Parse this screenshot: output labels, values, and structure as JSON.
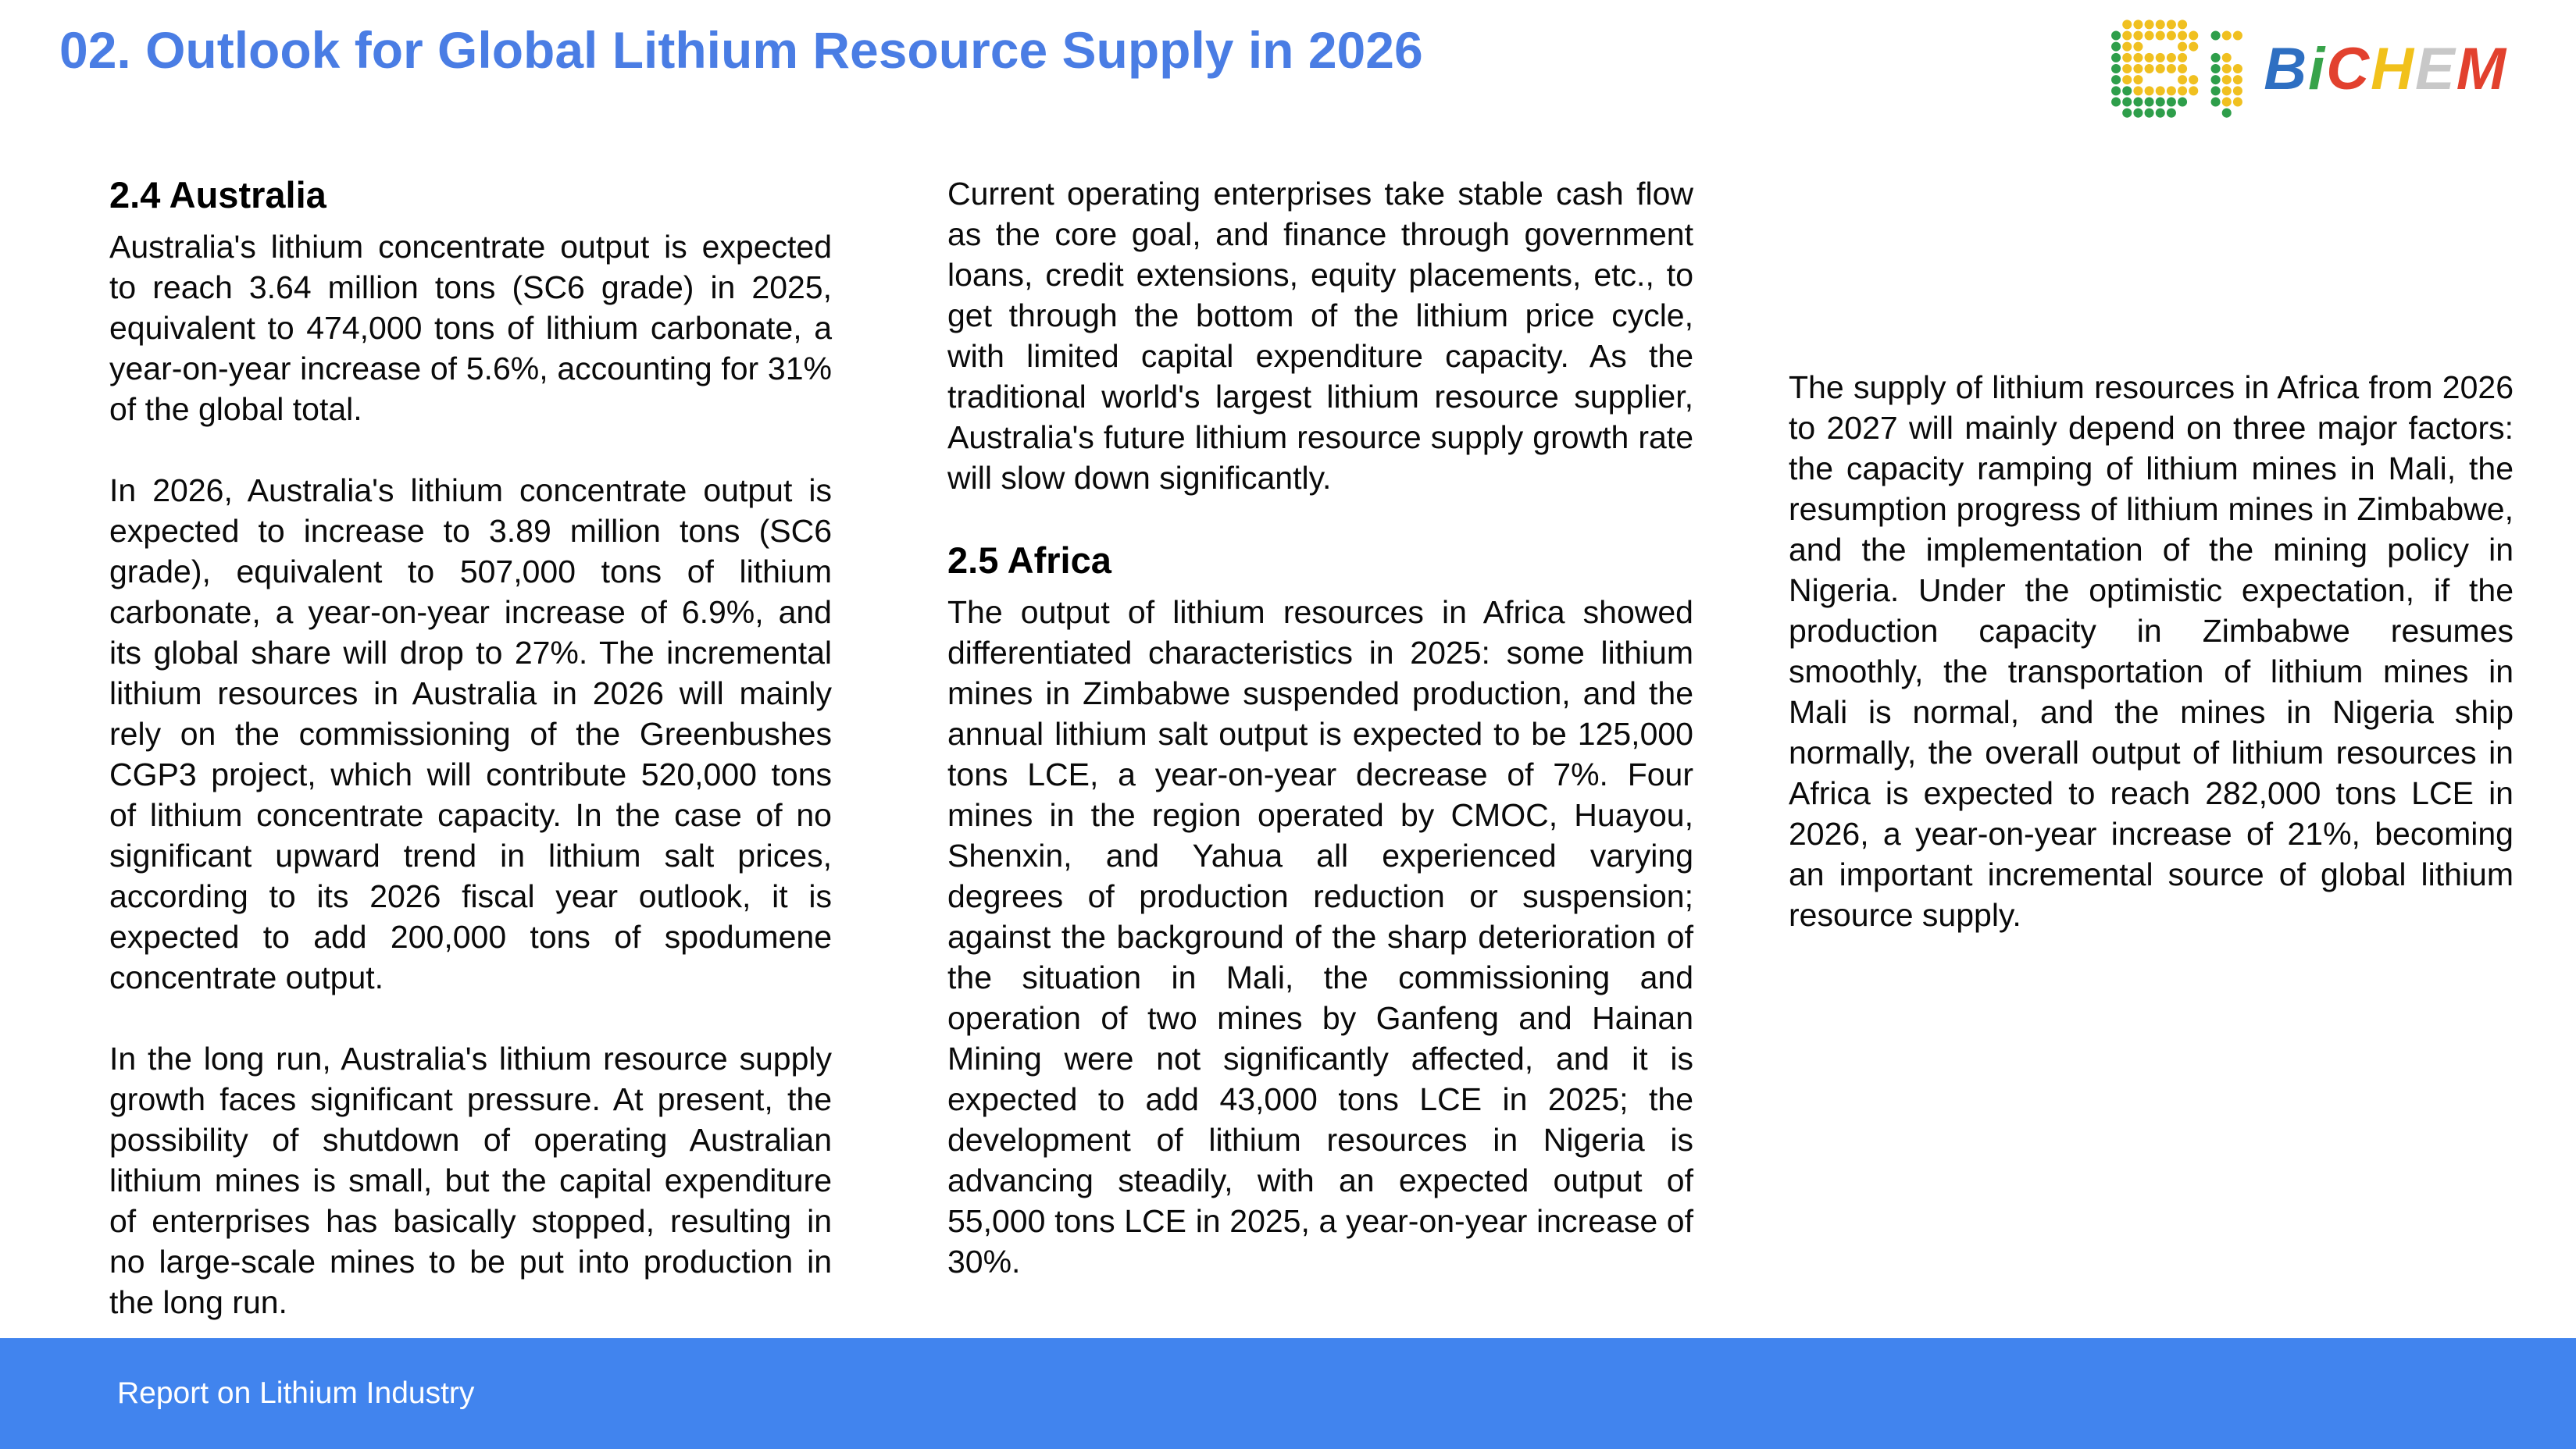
{
  "header": {
    "title": "02. Outlook for Global Lithium Resource Supply in 2026",
    "title_color": "#4a7de4"
  },
  "logo": {
    "name": "BiCHEM",
    "dot_colors": {
      "green": "#2e9e4a",
      "yellow": "#f0c020"
    },
    "letters": [
      {
        "char": "B",
        "color": "#2e6fc2"
      },
      {
        "char": "i",
        "color": "#38a34a"
      },
      {
        "char": "C",
        "color": "#e2412e"
      },
      {
        "char": "H",
        "color": "#f1c11b"
      },
      {
        "char": "E",
        "color": "#c8c8c8"
      },
      {
        "char": "M",
        "color": "#e2412e"
      }
    ]
  },
  "columns": [
    {
      "blocks": [
        {
          "type": "heading",
          "text": "2.4 Australia"
        },
        {
          "type": "paragraph",
          "text": "Australia's lithium concentrate output is expected to reach 3.64 million tons (SC6 grade) in 2025, equivalent to 474,000 tons of lithium carbonate, a year-on-year increase of 5.6%, accounting for 31% of the global total."
        },
        {
          "type": "paragraph",
          "text": "In 2026, Australia's lithium concentrate output is expected to increase to 3.89 million tons (SC6 grade), equivalent to 507,000 tons of lithium carbonate, a year-on-year increase of 6.9%, and its global share will drop to 27%. The incremental lithium resources in Australia in 2026 will mainly rely on the commissioning of the Greenbushes CGP3 project, which will contribute 520,000 tons of lithium concentrate capacity. In the case of no significant upward trend in lithium salt prices, according to its 2026 fiscal year outlook, it is expected to add 200,000 tons of spodumene concentrate output."
        },
        {
          "type": "paragraph",
          "text": "In the long run, Australia's lithium resource supply growth faces significant pressure. At present, the possibility of shutdown of operating Australian lithium mines is small, but the capital expenditure of enterprises has basically stopped, resulting in no large-scale mines to be put into production in the long run."
        }
      ]
    },
    {
      "blocks": [
        {
          "type": "paragraph",
          "text": "Current operating enterprises take stable cash flow as the core goal, and finance through government loans, credit extensions, equity placements, etc., to get through the bottom of the lithium price cycle, with limited capital expenditure capacity. As the traditional world's largest lithium resource supplier, Australia's future lithium resource supply growth rate will slow down significantly."
        },
        {
          "type": "heading",
          "text": "2.5 Africa"
        },
        {
          "type": "paragraph",
          "text": "The output of lithium resources in Africa showed differentiated characteristics in 2025: some lithium mines in Zimbabwe suspended production, and the annual lithium salt output is expected to be 125,000 tons LCE, a year-on-year decrease of 7%. Four mines in the region operated by CMOC, Huayou, Shenxin, and Yahua all experienced varying degrees of production reduction or suspension; against the background of the sharp deterioration of the situation in Mali, the commissioning and operation of two mines by Ganfeng and Hainan Mining were not significantly affected, and it is expected to add 43,000 tons LCE in 2025; the development of lithium resources in Nigeria is advancing steadily, with an expected output of 55,000 tons LCE in 2025, a year-on-year increase of 30%."
        }
      ]
    },
    {
      "blocks": [
        {
          "type": "paragraph",
          "text": "The supply of lithium resources in Africa from 2026 to 2027 will mainly depend on three major factors: the capacity ramping of lithium mines in Mali, the resumption progress of lithium mines in Zimbabwe, and the implementation of the mining policy in Nigeria. Under the optimistic expectation, if the production capacity in Zimbabwe resumes smoothly, the transportation of lithium mines in Mali is normal, and the mines in Nigeria ship normally, the overall output of lithium resources in Africa is expected to reach 282,000 tons LCE in 2026, a year-on-year increase of 21%, becoming an important incremental source of global lithium resource supply."
        }
      ]
    }
  ],
  "footer": {
    "text": "Report on Lithium Industry",
    "bg_color": "#4184ee"
  }
}
